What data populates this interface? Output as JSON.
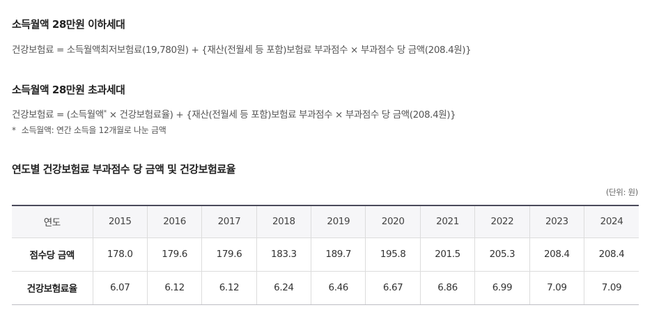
{
  "section1": {
    "title": "소득월액 28만원 이하세대",
    "formula": "건강보험료 = 소득월액최저보험료(19,780원) + {재산(전월세 등 포함)보험료 부과점수 × 부과점수 당 금액(208.4원)}"
  },
  "section2": {
    "title": "소득월액 28만원 초과세대",
    "formula_part1": "건강보험료 = (소득월액",
    "formula_sup": "*",
    "formula_part2": " × 건강보험료율) + {재산(전월세 등 포함)보험료 부과점수 × 부과점수 당 금액(208.4원)}",
    "note_star": "*",
    "note_text": "소득월액: 연간 소득을 12개월로 나눈 금액"
  },
  "section3": {
    "title": "연도별 건강보험료 부과점수 당 금액 및 건강보험료율",
    "unit": "(단위: 원)"
  },
  "table": {
    "header_label": "연도",
    "years": [
      "2015",
      "2016",
      "2017",
      "2018",
      "2019",
      "2020",
      "2021",
      "2022",
      "2023",
      "2024"
    ],
    "rows": [
      {
        "label": "점수당 금액",
        "values": [
          "178.0",
          "179.6",
          "179.6",
          "183.3",
          "189.7",
          "195.8",
          "201.5",
          "205.3",
          "208.4",
          "208.4"
        ]
      },
      {
        "label": "건강보험료율",
        "values": [
          "6.07",
          "6.12",
          "6.12",
          "6.24",
          "6.46",
          "6.67",
          "6.86",
          "6.99",
          "7.09",
          "7.09"
        ]
      }
    ]
  }
}
